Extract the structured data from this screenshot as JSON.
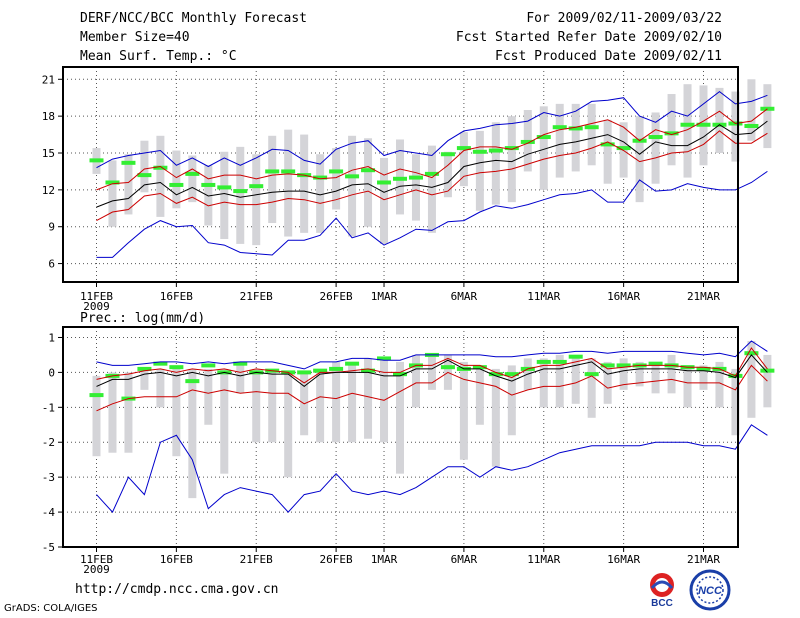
{
  "header": {
    "title": "DERF/NCC/BCC Monthly Forecast",
    "member_size": "Member Size=40",
    "variable": "Mean Surf. Temp.: °C",
    "forecast_period": "For 2009/02/11-2009/03/22",
    "fcst_started": "Fcst Started Refer Date 2009/02/10",
    "fcst_produced": "Fcst Produced Date 2009/02/11"
  },
  "footer": {
    "url": "http://cmdp.ncc.cma.gov.cn",
    "grads": "GrADS: COLA/IGES",
    "logo_bcc": "BCC",
    "logo_ncc": "NCC"
  },
  "colors": {
    "max_min": "#0000cc",
    "spread": "#cc0000",
    "mean": "#000000",
    "box": "#d4d4d8",
    "median": "#33ee33",
    "grid": "#555555"
  },
  "chart_data": [
    {
      "type": "line",
      "title": "Mean Surf. Temp.: °C",
      "ylim": [
        4.5,
        22
      ],
      "yticks": [
        6,
        9,
        12,
        15,
        18,
        21
      ],
      "x_ticks": [
        {
          "day": 0,
          "label": "11FEB"
        },
        {
          "day": 5,
          "label": "16FEB"
        },
        {
          "day": 10,
          "label": "21FEB"
        },
        {
          "day": 15,
          "label": "26FEB"
        },
        {
          "day": 18,
          "label": "1MAR"
        },
        {
          "day": 23,
          "label": "6MAR"
        },
        {
          "day": 28,
          "label": "11MAR"
        },
        {
          "day": 33,
          "label": "16MAR"
        },
        {
          "day": 38,
          "label": "21MAR"
        }
      ],
      "year_label": "2009",
      "series": [
        {
          "name": "max",
          "values": [
            13.8,
            14.5,
            14.8,
            15.0,
            15.2,
            14.0,
            14.6,
            13.9,
            14.6,
            14.0,
            14.6,
            15.3,
            15.2,
            14.4,
            14.1,
            15.3,
            15.8,
            16.0,
            14.8,
            15.2,
            15.0,
            14.8,
            16.0,
            16.8,
            17.0,
            17.3,
            17.4,
            17.6,
            18.3,
            18.0,
            18.4,
            19.2,
            19.3,
            19.5,
            18.0,
            17.5,
            18.4,
            18.0,
            19.0,
            20.0,
            19.0,
            19.2,
            19.7
          ]
        },
        {
          "name": "upper",
          "values": [
            12.0,
            12.5,
            12.6,
            13.7,
            13.9,
            13.0,
            13.7,
            12.9,
            13.2,
            13.2,
            12.9,
            13.2,
            13.3,
            13.2,
            12.9,
            13.0,
            13.6,
            13.9,
            13.2,
            13.7,
            13.4,
            13.0,
            14.0,
            15.2,
            15.5,
            15.5,
            15.3,
            15.8,
            16.5,
            16.9,
            17.1,
            17.4,
            17.7,
            17.1,
            16.0,
            16.9,
            16.5,
            16.9,
            17.6,
            18.4,
            17.4,
            17.6,
            18.6
          ]
        },
        {
          "name": "mean",
          "values": [
            10.6,
            11.1,
            11.3,
            12.4,
            12.6,
            11.6,
            12.2,
            11.5,
            11.7,
            11.4,
            11.6,
            11.8,
            11.9,
            11.9,
            11.6,
            11.9,
            12.4,
            12.5,
            11.8,
            12.3,
            12.4,
            12.2,
            12.6,
            13.9,
            14.2,
            14.4,
            14.3,
            14.9,
            15.3,
            15.7,
            15.9,
            16.2,
            16.5,
            15.9,
            14.9,
            15.9,
            15.6,
            15.6,
            16.3,
            17.3,
            16.5,
            16.6,
            17.6
          ]
        },
        {
          "name": "lower",
          "values": [
            9.5,
            10.2,
            10.4,
            11.5,
            11.7,
            10.9,
            11.4,
            10.7,
            11.0,
            10.8,
            10.8,
            11.0,
            11.3,
            11.2,
            10.9,
            11.2,
            11.6,
            11.9,
            11.2,
            11.6,
            12.0,
            11.6,
            11.9,
            13.1,
            13.4,
            13.5,
            13.7,
            14.1,
            14.5,
            14.8,
            15.0,
            15.4,
            15.9,
            15.2,
            14.3,
            14.6,
            15.0,
            15.1,
            15.7,
            16.8,
            15.8,
            15.8,
            16.6
          ]
        },
        {
          "name": "min",
          "values": [
            6.5,
            6.5,
            7.7,
            8.8,
            9.5,
            9.0,
            9.1,
            7.7,
            7.5,
            6.9,
            6.8,
            6.7,
            7.9,
            7.9,
            8.3,
            9.7,
            8.1,
            8.5,
            7.5,
            8.1,
            8.8,
            8.7,
            9.4,
            9.5,
            10.2,
            10.7,
            10.5,
            10.8,
            11.2,
            11.6,
            11.7,
            12.0,
            11.0,
            11.0,
            12.8,
            11.9,
            12.0,
            12.5,
            12.2,
            12.0,
            12.0,
            12.6,
            13.5
          ]
        }
      ],
      "boxes": [
        [
          13.3,
          15.4
        ],
        [
          9.0,
          14.4
        ],
        [
          10.0,
          14.9
        ],
        [
          11.8,
          16.0
        ],
        [
          9.8,
          16.4
        ],
        [
          10.5,
          15.2
        ],
        [
          11.0,
          14.8
        ],
        [
          9.1,
          14.0
        ],
        [
          8.0,
          15.1
        ],
        [
          7.6,
          15.5
        ],
        [
          7.5,
          14.9
        ],
        [
          9.3,
          16.4
        ],
        [
          8.2,
          16.9
        ],
        [
          8.5,
          16.5
        ],
        [
          8.5,
          14.9
        ],
        [
          10.4,
          15.4
        ],
        [
          8.2,
          16.4
        ],
        [
          9.0,
          16.2
        ],
        [
          7.6,
          14.6
        ],
        [
          10.0,
          16.1
        ],
        [
          9.5,
          14.9
        ],
        [
          8.5,
          15.6
        ],
        [
          11.4,
          15.1
        ],
        [
          12.3,
          16.7
        ],
        [
          10.3,
          16.8
        ],
        [
          10.8,
          17.5
        ],
        [
          11.0,
          18.0
        ],
        [
          13.5,
          18.5
        ],
        [
          12.0,
          18.8
        ],
        [
          13.0,
          19.0
        ],
        [
          13.5,
          19.0
        ],
        [
          14.0,
          19.0
        ],
        [
          12.5,
          17.7
        ],
        [
          13.0,
          17.5
        ],
        [
          11.0,
          18.0
        ],
        [
          12.5,
          18.3
        ],
        [
          14.0,
          19.8
        ],
        [
          13.0,
          20.6
        ],
        [
          14.0,
          20.5
        ],
        [
          15.0,
          20.3
        ],
        [
          14.3,
          20.0
        ],
        [
          16.0,
          21.0
        ],
        [
          15.4,
          20.6
        ]
      ],
      "medians": [
        14.4,
        12.6,
        14.2,
        13.2,
        13.8,
        12.4,
        13.3,
        12.4,
        12.2,
        11.9,
        12.3,
        13.5,
        13.5,
        13.2,
        13.0,
        13.5,
        13.1,
        13.6,
        12.6,
        12.9,
        13.0,
        13.3,
        14.9,
        15.4,
        15.1,
        15.2,
        15.4,
        15.9,
        16.3,
        17.1,
        17.0,
        17.1,
        15.7,
        15.4,
        16.0,
        16.3,
        16.6,
        17.3,
        17.3,
        17.3,
        17.4,
        17.2,
        18.6
      ]
    },
    {
      "type": "line",
      "title": "Prec.: log(mm/d)",
      "ylim": [
        -5,
        1.3
      ],
      "yticks": [
        -5,
        -4,
        -3,
        -2,
        -1,
        0,
        1
      ],
      "x_ticks": [
        {
          "day": 0,
          "label": "11FEB"
        },
        {
          "day": 5,
          "label": "16FEB"
        },
        {
          "day": 10,
          "label": "21FEB"
        },
        {
          "day": 15,
          "label": "26FEB"
        },
        {
          "day": 18,
          "label": "1MAR"
        },
        {
          "day": 23,
          "label": "6MAR"
        },
        {
          "day": 28,
          "label": "11MAR"
        },
        {
          "day": 33,
          "label": "16MAR"
        },
        {
          "day": 38,
          "label": "21MAR"
        }
      ],
      "year_label": "2009",
      "series": [
        {
          "name": "max",
          "values": [
            0.3,
            0.2,
            0.2,
            0.25,
            0.3,
            0.3,
            0.25,
            0.3,
            0.25,
            0.3,
            0.3,
            0.3,
            0.2,
            0.1,
            0.3,
            0.3,
            0.4,
            0.4,
            0.35,
            0.35,
            0.5,
            0.5,
            0.5,
            0.5,
            0.5,
            0.45,
            0.45,
            0.5,
            0.55,
            0.55,
            0.6,
            0.6,
            0.55,
            0.6,
            0.6,
            0.6,
            0.6,
            0.55,
            0.5,
            0.55,
            0.45,
            0.9,
            0.6
          ]
        },
        {
          "name": "upper",
          "values": [
            -0.2,
            -0.1,
            -0.05,
            0.05,
            0.1,
            0.0,
            0.1,
            0.05,
            0.1,
            0.0,
            0.1,
            0.05,
            0.0,
            -0.3,
            0.0,
            0.0,
            0.05,
            0.1,
            0.0,
            0.0,
            0.2,
            0.2,
            0.4,
            0.2,
            0.2,
            0.0,
            -0.15,
            0.1,
            0.2,
            0.2,
            0.3,
            0.4,
            0.1,
            0.15,
            0.2,
            0.2,
            0.2,
            0.15,
            0.15,
            0.1,
            -0.1,
            0.7,
            0.1
          ]
        },
        {
          "name": "mean",
          "values": [
            -0.4,
            -0.2,
            -0.2,
            -0.05,
            0.0,
            -0.1,
            0.0,
            -0.1,
            0.0,
            -0.1,
            0.0,
            -0.05,
            -0.05,
            -0.4,
            -0.05,
            0.0,
            0.0,
            0.0,
            -0.1,
            -0.1,
            0.1,
            0.1,
            0.35,
            0.1,
            0.1,
            -0.1,
            -0.25,
            -0.05,
            0.1,
            0.1,
            0.2,
            0.3,
            -0.05,
            0.05,
            0.1,
            0.1,
            0.1,
            0.05,
            0.05,
            0.0,
            -0.15,
            0.5,
            0.0
          ]
        },
        {
          "name": "lower",
          "values": [
            -1.1,
            -0.9,
            -0.75,
            -0.7,
            -0.7,
            -0.7,
            -0.5,
            -0.6,
            -0.5,
            -0.6,
            -0.55,
            -0.6,
            -0.6,
            -0.9,
            -0.7,
            -0.75,
            -0.6,
            -0.7,
            -0.8,
            -0.55,
            -0.3,
            -0.3,
            0.0,
            -0.2,
            -0.3,
            -0.4,
            -0.65,
            -0.5,
            -0.4,
            -0.4,
            -0.3,
            -0.1,
            -0.45,
            -0.35,
            -0.3,
            -0.25,
            -0.2,
            -0.3,
            -0.3,
            -0.3,
            -0.5,
            0.2,
            -0.25
          ]
        },
        {
          "name": "min",
          "values": [
            -3.5,
            -4.0,
            -3.0,
            -3.5,
            -2.0,
            -1.8,
            -2.5,
            -3.9,
            -3.5,
            -3.3,
            -3.4,
            -3.5,
            -4.0,
            -3.5,
            -3.4,
            -2.9,
            -3.4,
            -3.5,
            -3.4,
            -3.5,
            -3.3,
            -3.0,
            -2.7,
            -2.7,
            -3.0,
            -2.7,
            -2.8,
            -2.7,
            -2.5,
            -2.3,
            -2.2,
            -2.1,
            -2.1,
            -2.1,
            -2.1,
            -2.0,
            -2.0,
            -2.0,
            -2.1,
            -2.1,
            -2.2,
            -1.5,
            -1.8
          ]
        }
      ],
      "boxes": [
        [
          -2.4,
          -0.1
        ],
        [
          -2.3,
          0.0
        ],
        [
          -2.3,
          0.0
        ],
        [
          -0.5,
          0.1
        ],
        [
          -1.0,
          0.1
        ],
        [
          -2.4,
          0.1
        ],
        [
          -3.6,
          0.1
        ],
        [
          -1.5,
          0.1
        ],
        [
          -2.9,
          0.1
        ],
        [
          -0.6,
          0.3
        ],
        [
          -2.0,
          0.1
        ],
        [
          -2.0,
          0.1
        ],
        [
          -3.0,
          0.0
        ],
        [
          -1.8,
          0.0
        ],
        [
          -2.0,
          0.0
        ],
        [
          -2.0,
          0.3
        ],
        [
          -2.0,
          0.3
        ],
        [
          -1.9,
          0.4
        ],
        [
          -2.0,
          0.4
        ],
        [
          -2.9,
          0.3
        ],
        [
          -1.0,
          0.5
        ],
        [
          -0.5,
          0.5
        ],
        [
          -0.5,
          0.5
        ],
        [
          -2.5,
          0.3
        ],
        [
          -1.5,
          0.2
        ],
        [
          -2.7,
          0.1
        ],
        [
          -1.8,
          0.2
        ],
        [
          -0.5,
          0.4
        ],
        [
          -1.0,
          0.4
        ],
        [
          -1.0,
          0.5
        ],
        [
          -0.9,
          0.5
        ],
        [
          -1.3,
          0.4
        ],
        [
          -0.9,
          0.3
        ],
        [
          -0.5,
          0.4
        ],
        [
          -0.4,
          0.3
        ],
        [
          -0.6,
          0.3
        ],
        [
          -0.6,
          0.5
        ],
        [
          -1.0,
          0.2
        ],
        [
          -0.5,
          0.2
        ],
        [
          -1.0,
          0.3
        ],
        [
          -1.8,
          0.1
        ],
        [
          -1.3,
          0.9
        ],
        [
          -1.0,
          0.5
        ]
      ],
      "medians": [
        -0.65,
        -0.1,
        -0.75,
        0.1,
        0.25,
        0.15,
        -0.25,
        0.2,
        0.0,
        0.25,
        0.0,
        0.05,
        0.0,
        0.0,
        0.05,
        0.1,
        0.25,
        0.05,
        0.4,
        -0.05,
        0.2,
        0.5,
        0.15,
        0.1,
        0.15,
        -0.05,
        -0.05,
        0.1,
        0.3,
        0.3,
        0.45,
        -0.05,
        0.2,
        0.2,
        0.2,
        0.25,
        0.2,
        0.15,
        0.1,
        0.1,
        -0.1,
        0.55,
        0.05
      ]
    }
  ]
}
